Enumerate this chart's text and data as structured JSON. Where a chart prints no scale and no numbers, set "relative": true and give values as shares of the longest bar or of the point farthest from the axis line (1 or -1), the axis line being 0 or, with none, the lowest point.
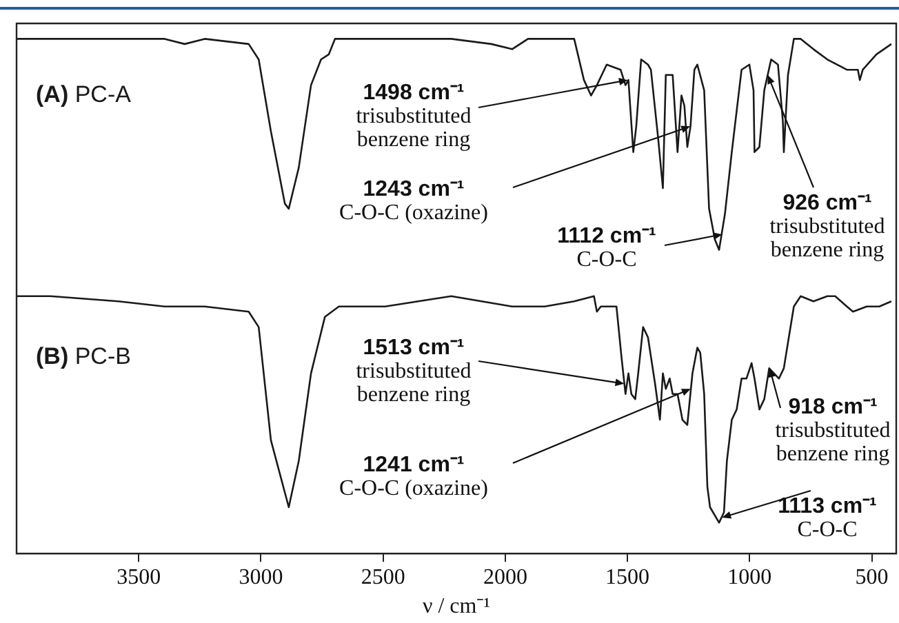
{
  "chart_data": {
    "type": "line",
    "relative": true,
    "xlabel": "ν / cm⁻¹",
    "xlim": [
      4000,
      400
    ],
    "xticks": [
      3500,
      3000,
      2500,
      2000,
      1500,
      1000,
      500
    ],
    "marker": "none",
    "line_style": "solid",
    "series": [
      {
        "name": "(A) PC-A",
        "color": "#1a1a1a",
        "x": [
          4000,
          3861,
          3583,
          3394,
          3312,
          3230,
          3050,
          3009,
          2959,
          2902,
          2886,
          2845,
          2795,
          2754,
          2722,
          2697,
          2492,
          2221,
          2057,
          1972,
          1907,
          1770,
          1718,
          1678,
          1649,
          1625,
          1585,
          1528,
          1508,
          1496,
          1476,
          1464,
          1444,
          1416,
          1404,
          1375,
          1355,
          1343,
          1327,
          1315,
          1295,
          1279,
          1267,
          1255,
          1242,
          1226,
          1214,
          1186,
          1166,
          1142,
          1125,
          1101,
          1073,
          1033,
          1001,
          984,
          980,
          960,
          940,
          912,
          884,
          864,
          860,
          843,
          819,
          791,
          739,
          682,
          602,
          557,
          549,
          537,
          481,
          420
        ],
        "values": [
          1,
          1,
          1,
          1,
          0.99,
          1,
          0.99,
          0.96,
          0.82,
          0.68,
          0.67,
          0.75,
          0.91,
          0.96,
          0.97,
          1,
          1,
          1,
          0.99,
          0.98,
          1,
          1,
          1,
          0.92,
          0.89,
          0.91,
          0.95,
          0.94,
          0.91,
          0.92,
          0.78,
          0.83,
          0.96,
          0.95,
          0.94,
          0.81,
          0.71,
          0.93,
          0.93,
          0.93,
          0.78,
          0.89,
          0.87,
          0.79,
          0.83,
          0.94,
          0.95,
          0.9,
          0.67,
          0.61,
          0.59,
          0.66,
          0.78,
          0.94,
          0.95,
          0.9,
          0.78,
          0.79,
          0.9,
          0.96,
          0.95,
          0.84,
          0.78,
          0.93,
          1,
          1,
          0.98,
          0.96,
          0.94,
          0.94,
          0.92,
          0.94,
          0.97,
          0.99
        ]
      },
      {
        "name": "(B) PC-B",
        "color": "#1a1a1a",
        "x": [
          4000,
          3861,
          3583,
          3394,
          3312,
          3230,
          3050,
          3009,
          2959,
          2886,
          2845,
          2795,
          2738,
          2681,
          2492,
          2221,
          1972,
          1839,
          1718,
          1637,
          1625,
          1609,
          1597,
          1589,
          1545,
          1524,
          1508,
          1496,
          1484,
          1468,
          1456,
          1436,
          1416,
          1387,
          1367,
          1355,
          1343,
          1327,
          1315,
          1295,
          1275,
          1255,
          1234,
          1214,
          1202,
          1186,
          1173,
          1162,
          1125,
          1105,
          1093,
          1073,
          1053,
          1033,
          1013,
          992,
          980,
          960,
          940,
          920,
          900,
          880,
          860,
          843,
          819,
          791,
          739,
          682,
          650,
          602,
          577,
          521,
          469,
          420
        ],
        "values": [
          0.5,
          0.5,
          0.49,
          0.48,
          0.48,
          0.48,
          0.47,
          0.44,
          0.22,
          0.09,
          0.18,
          0.35,
          0.46,
          0.48,
          0.48,
          0.5,
          0.48,
          0.48,
          0.49,
          0.5,
          0.47,
          0.48,
          0.48,
          0.48,
          0.48,
          0.38,
          0.31,
          0.35,
          0.31,
          0.3,
          0.35,
          0.44,
          0.42,
          0.33,
          0.26,
          0.35,
          0.32,
          0.34,
          0.31,
          0.31,
          0.26,
          0.25,
          0.35,
          0.4,
          0.39,
          0.31,
          0.13,
          0.09,
          0.06,
          0.08,
          0.18,
          0.26,
          0.28,
          0.34,
          0.34,
          0.37,
          0.34,
          0.28,
          0.3,
          0.36,
          0.35,
          0.34,
          0.36,
          0.41,
          0.48,
          0.5,
          0.49,
          0.5,
          0.5,
          0.48,
          0.47,
          0.48,
          0.48,
          0.49
        ]
      }
    ],
    "annotations": [
      {
        "text": "1498 cm⁻¹\ntrisubstituted\nbenzene ring",
        "x": 1498,
        "y": 0.92
      },
      {
        "text": "1243 cm⁻¹\nC-O-C (oxazine)",
        "x": 1243,
        "y": 0.83
      },
      {
        "text": "1112 cm⁻¹\nC-O-C",
        "x": 1112,
        "y": 0.62
      },
      {
        "text": "926 cm⁻¹\ntrisubstituted\nbenzene ring",
        "x": 926,
        "y": 0.93
      },
      {
        "text": "1513 cm⁻¹\ntrisubstituted\nbenzene ring",
        "x": 1513,
        "y": 0.33
      },
      {
        "text": "1241 cm⁻¹\nC-O-C (oxazine)",
        "x": 1241,
        "y": 0.32
      },
      {
        "text": "918 cm⁻¹\ntrisubstituted\nbenzene ring",
        "x": 918,
        "y": 0.36
      },
      {
        "text": "1113 cm⁻¹\nC-O-C",
        "x": 1113,
        "y": 0.07
      }
    ]
  }
}
